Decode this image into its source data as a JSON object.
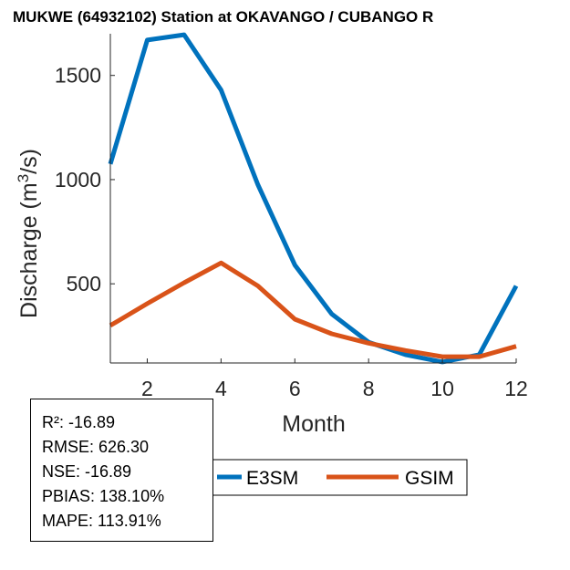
{
  "chart_data": {
    "type": "line",
    "title": "MUKWE (64932102)  Station at  OKAVANGO / CUBANGO  R",
    "xlabel": "Month",
    "ylabel_main": "Discharge (m",
    "ylabel_sup": "3",
    "ylabel_tail": "/s)",
    "xlim": [
      1,
      12
    ],
    "ylim": [
      120,
      1700
    ],
    "xticks": [
      2,
      4,
      6,
      8,
      10,
      12
    ],
    "yticks": [
      500,
      1000,
      1500
    ],
    "x": [
      1,
      2,
      3,
      4,
      5,
      6,
      7,
      8,
      9,
      10,
      11,
      12
    ],
    "series": [
      {
        "name": "E3SM",
        "color": "#0072BD",
        "values": [
          1075,
          1670,
          1695,
          1430,
          975,
          590,
          355,
          220,
          160,
          125,
          160,
          490
        ]
      },
      {
        "name": "GSIM",
        "color": "#D95319",
        "values": [
          300,
          405,
          505,
          600,
          490,
          330,
          260,
          215,
          180,
          150,
          150,
          200
        ]
      }
    ]
  },
  "stats": [
    "R²: -16.89",
    "RMSE: 626.30",
    "NSE: -16.89",
    "PBIAS: 138.10%",
    "MAPE: 113.91%"
  ]
}
